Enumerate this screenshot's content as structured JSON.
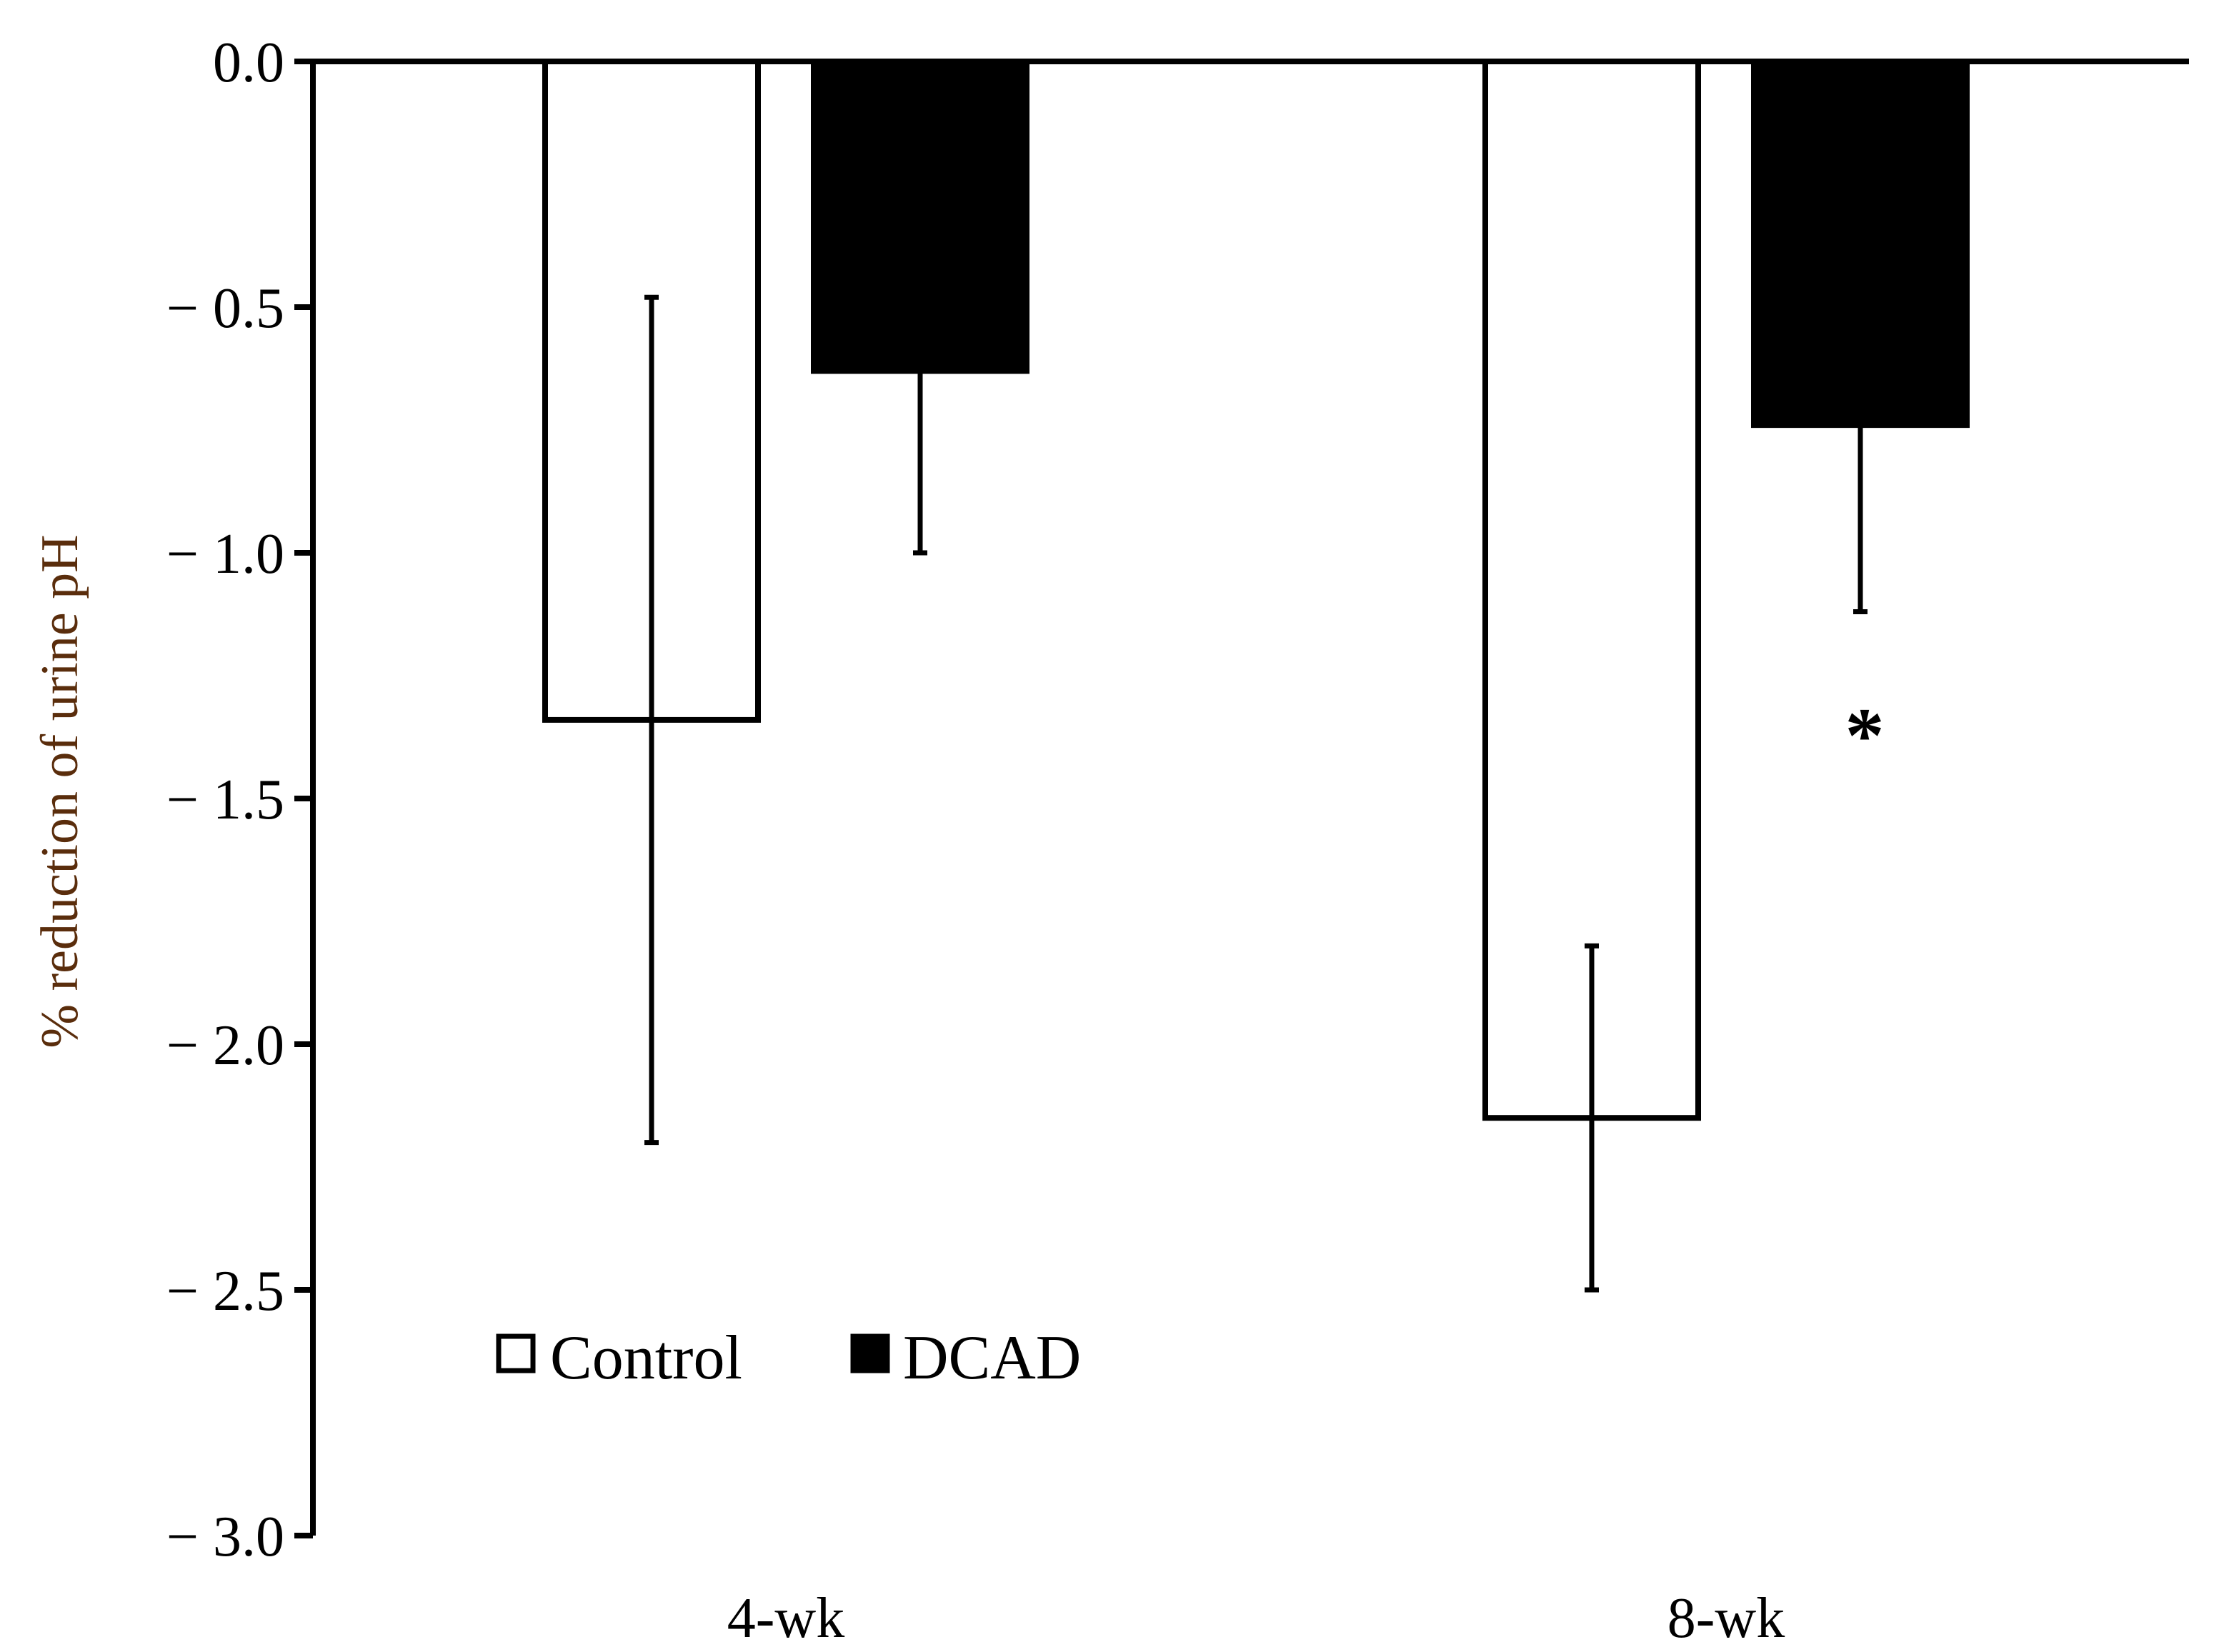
{
  "chart_data": {
    "type": "bar",
    "categories": [
      "4-wk",
      "8-wk"
    ],
    "series": [
      {
        "name": "Control",
        "values": [
          -1.34,
          -2.15
        ],
        "errors": [
          0.86,
          0.35
        ],
        "color": "#ffffff",
        "stroke": "#000000"
      },
      {
        "name": "DCAD",
        "values": [
          -0.63,
          -0.74
        ],
        "errors": [
          0.37,
          0.38
        ],
        "color": "#000000",
        "stroke": "#000000"
      }
    ],
    "xlabel": "",
    "ylabel": "% reduction of urine pH",
    "ylabel_color": "#5a2d0c",
    "ylim": [
      -3.0,
      0.0
    ],
    "yticks": [
      0.0,
      -0.5,
      -1.0,
      -1.5,
      -2.0,
      -2.5,
      -3.0
    ],
    "ytick_labels": [
      "0.0",
      "− 0.5",
      "− 1.0",
      "− 1.5",
      "− 2.0",
      "− 2.5",
      "− 3.0"
    ],
    "grid": false,
    "legend_position": "bottom-left",
    "annotations": [
      {
        "text": "*",
        "category": "8-wk",
        "series": "DCAD"
      }
    ]
  }
}
